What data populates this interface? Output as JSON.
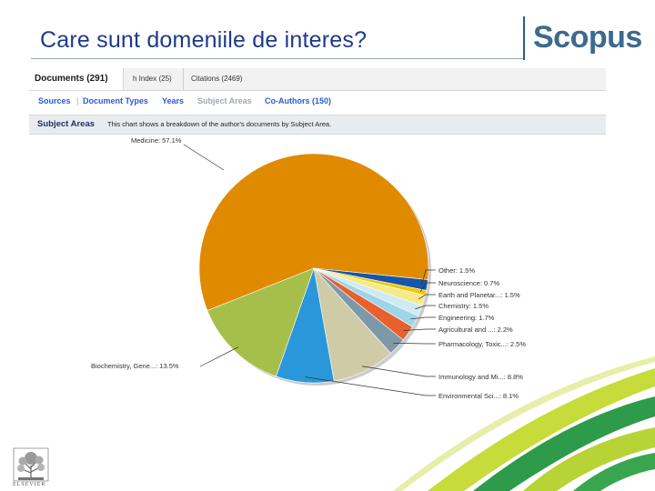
{
  "slide": {
    "title": "Care sunt domeniile de interes?",
    "logo": "Scopus",
    "publisher_logo": "ELSEVIER"
  },
  "tabs": [
    {
      "label": "Documents (291)",
      "active": true
    },
    {
      "label": "h Index (25)",
      "active": false
    },
    {
      "label": "Citations (2469)",
      "active": false
    }
  ],
  "links": [
    {
      "label": "Sources",
      "active": true
    },
    {
      "label": "Document Types",
      "active": true
    },
    {
      "label": "Years",
      "active": true
    },
    {
      "label": "Subject Areas",
      "active": false
    },
    {
      "label": "Co-Authors (150)",
      "active": true
    }
  ],
  "subject_bar": {
    "title": "Subject Areas",
    "description": "This chart shows a breakdown of the author's documents by Subject Area."
  },
  "colors": {
    "medicine": "#e08a00",
    "biochemistry": "#a6bf4a",
    "environmental": "#2a97db",
    "immunology": "#cfcba6",
    "pharmacology": "#7d98a8",
    "agricultural": "#e8602c",
    "engineering": "#9ed6e8",
    "chemistry": "#d0eaf2",
    "earth": "#f5ea8a",
    "neuroscience": "#f0c800",
    "other": "#1756a9",
    "logo": "#3d6a8e",
    "title": "#1f3a8a"
  },
  "chart_data": {
    "type": "pie",
    "title": "",
    "slices": [
      {
        "label": "Medicine: 57.1%",
        "value": 57.1,
        "color_key": "medicine"
      },
      {
        "label": "Other: 1.5%",
        "value": 1.5,
        "color_key": "other"
      },
      {
        "label": "Neuroscience: 0.7%",
        "value": 0.7,
        "color_key": "neuroscience"
      },
      {
        "label": "Earth and Planetar...: 1.5%",
        "value": 1.5,
        "color_key": "earth"
      },
      {
        "label": "Chemistry: 1.5%",
        "value": 1.5,
        "color_key": "chemistry"
      },
      {
        "label": "Engineering: 1.7%",
        "value": 1.7,
        "color_key": "engineering"
      },
      {
        "label": "Agricultural and ...: 2.2%",
        "value": 2.2,
        "color_key": "agricultural"
      },
      {
        "label": "Pharmacology, Toxic...: 2.5%",
        "value": 2.5,
        "color_key": "pharmacology"
      },
      {
        "label": "Immunology and Mi...: 8.8%",
        "value": 8.8,
        "color_key": "immunology"
      },
      {
        "label": "Environmental Sci...: 8.1%",
        "value": 8.1,
        "color_key": "environmental"
      },
      {
        "label": "Biochemistry, Gene...: 13.5%",
        "value": 13.5,
        "color_key": "biochemistry"
      }
    ]
  }
}
